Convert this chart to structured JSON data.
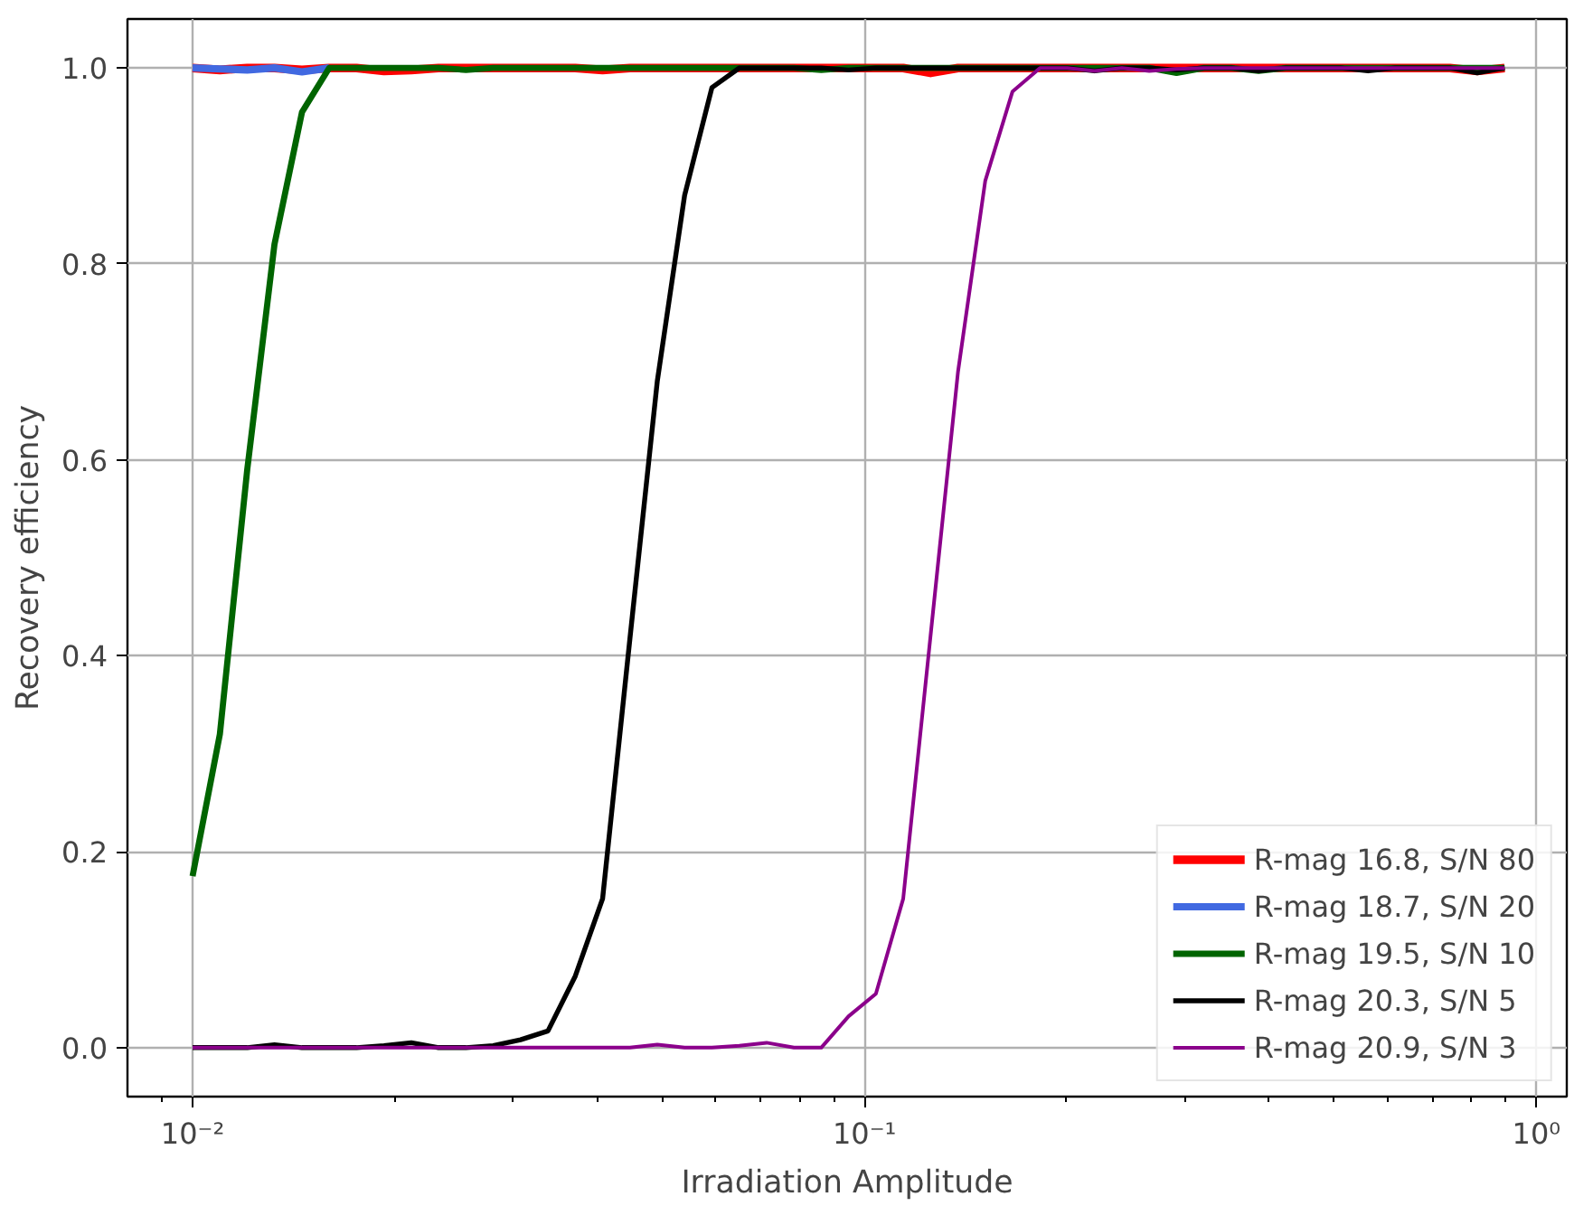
{
  "chart_data": {
    "type": "line",
    "xlabel": "Irradiation Amplitude",
    "ylabel": "Recovery efficiency",
    "log": "x",
    "grid": true,
    "legend": "bottom right",
    "marker": "none",
    "line_style": "solid",
    "xlim": [
      0.008,
      1.11
    ],
    "ylim": [
      -0.05,
      1.05
    ],
    "xticks": [
      {
        "value": 0.009,
        "label": null
      },
      {
        "value": 0.01,
        "label": "10⁻²"
      },
      {
        "value": 0.02,
        "label": null
      },
      {
        "value": 0.03,
        "label": null
      },
      {
        "value": 0.04,
        "label": null
      },
      {
        "value": 0.05,
        "label": null
      },
      {
        "value": 0.06,
        "label": null
      },
      {
        "value": 0.07,
        "label": null
      },
      {
        "value": 0.08,
        "label": null
      },
      {
        "value": 0.09,
        "label": null
      },
      {
        "value": 0.1,
        "label": "10⁻¹"
      },
      {
        "value": 0.2,
        "label": null
      },
      {
        "value": 0.3,
        "label": null
      },
      {
        "value": 0.4,
        "label": null
      },
      {
        "value": 0.5,
        "label": null
      },
      {
        "value": 0.6,
        "label": null
      },
      {
        "value": 0.7,
        "label": null
      },
      {
        "value": 0.8,
        "label": null
      },
      {
        "value": 0.9,
        "label": null
      },
      {
        "value": 1,
        "label": "10⁰"
      }
    ],
    "yticks": [
      {
        "value": 0,
        "label": "0.0"
      },
      {
        "value": 0.2,
        "label": "0.2"
      },
      {
        "value": 0.4,
        "label": "0.4"
      },
      {
        "value": 0.6,
        "label": "0.6"
      },
      {
        "value": 0.8,
        "label": "0.8"
      },
      {
        "value": 1,
        "label": "1.0"
      }
    ],
    "x": [
      0.01,
      0.01098,
      0.01206,
      0.01324,
      0.01455,
      0.01597,
      0.01754,
      0.01927,
      0.02116,
      0.02323,
      0.02552,
      0.02802,
      0.03077,
      0.0338,
      0.03712,
      0.04076,
      0.04477,
      0.04916,
      0.05399,
      0.05929,
      0.06511,
      0.07151,
      0.07853,
      0.08624,
      0.09471,
      0.104,
      0.1142,
      0.1254,
      0.1378,
      0.1513,
      0.1661,
      0.1825,
      0.2004,
      0.22,
      0.2416,
      0.2654,
      0.2914,
      0.3201,
      0.3515,
      0.386,
      0.4239,
      0.4655,
      0.5113,
      0.5615,
      0.6166,
      0.6772,
      0.7437,
      0.8167,
      0.8969
    ],
    "series": [
      {
        "name": "R-mag 16.8, S/N 80",
        "color": "#ff0000",
        "values": [
          1.0,
          0.998,
          1.0,
          1.0,
          0.998,
          1.0,
          1.0,
          0.997,
          0.998,
          1.0,
          1.0,
          1.0,
          1.0,
          1.0,
          1.0,
          0.998,
          1.0,
          1.0,
          1.0,
          1.0,
          1.0,
          1.0,
          1.0,
          1.0,
          1.0,
          1.0,
          1.0,
          0.995,
          1.0,
          1.0,
          1.0,
          1.0,
          1.0,
          1.0,
          1.0,
          1.0,
          1.0,
          1.0,
          1.0,
          1.0,
          1.0,
          1.0,
          1.0,
          1.0,
          1.0,
          1.0,
          1.0,
          0.997,
          1.0
        ]
      },
      {
        "name": "R-mag 18.7, S/N 20",
        "color": "#4169e1",
        "values": [
          1.0,
          0.999,
          0.998,
          1.0,
          0.996,
          1.0,
          null,
          null,
          null,
          null,
          null,
          null,
          null,
          null,
          null,
          null,
          null,
          null,
          null,
          null,
          null,
          null,
          null,
          null,
          null,
          null,
          null,
          null,
          null,
          null,
          null,
          null,
          null,
          null,
          null,
          null,
          null,
          null,
          null,
          null,
          null,
          null,
          null,
          null,
          null,
          null,
          null,
          null,
          null
        ]
      },
      {
        "name": "R-mag 19.5, S/N 10",
        "color": "#006400",
        "values": [
          0.175,
          0.32,
          0.59,
          0.82,
          0.955,
          1.0,
          1.0,
          1.0,
          1.0,
          1.0,
          0.998,
          1.0,
          1.0,
          1.0,
          1.0,
          1.0,
          1.0,
          1.0,
          1.0,
          1.0,
          1.0,
          1.0,
          1.0,
          0.998,
          1.0,
          1.0,
          1.0,
          1.0,
          1.0,
          1.0,
          1.0,
          1.0,
          1.0,
          1.0,
          1.0,
          1.0,
          0.995,
          1.0,
          1.0,
          0.997,
          1.0,
          1.0,
          1.0,
          1.0,
          1.0,
          1.0,
          1.0,
          1.0,
          1.0
        ]
      },
      {
        "name": "R-mag 20.3, S/N 5",
        "color": "#000000",
        "values": [
          0.0,
          0.0,
          0.0,
          0.003,
          0.0,
          0.0,
          0.0,
          0.002,
          0.005,
          0.0,
          0.0,
          0.002,
          0.008,
          0.017,
          0.073,
          0.152,
          0.418,
          0.68,
          0.87,
          0.98,
          1.0,
          1.0,
          1.0,
          1.0,
          0.998,
          1.0,
          1.0,
          1.0,
          1.0,
          1.0,
          1.0,
          1.0,
          1.0,
          0.997,
          1.0,
          1.0,
          0.998,
          1.0,
          1.0,
          0.997,
          1.0,
          1.0,
          1.0,
          0.997,
          1.0,
          1.0,
          1.0,
          0.995,
          1.0
        ]
      },
      {
        "name": "R-mag 20.9, S/N 3",
        "color": "#8b008b",
        "values": [
          0.0,
          0.0,
          0.0,
          0.0,
          0.0,
          0.0,
          0.0,
          0.0,
          0.0,
          0.0,
          0.0,
          0.0,
          0.0,
          0.0,
          0.0,
          0.0,
          0.0,
          0.003,
          0.0,
          0.0,
          0.002,
          0.005,
          0.0,
          0.0,
          0.032,
          0.055,
          0.152,
          0.42,
          0.69,
          0.885,
          0.976,
          1.0,
          1.0,
          0.997,
          1.0,
          0.997,
          0.999,
          1.0,
          1.0,
          1.0,
          1.0,
          1.0,
          1.0,
          1.0,
          1.0,
          1.0,
          1.0,
          1.0,
          1.0
        ]
      }
    ]
  }
}
